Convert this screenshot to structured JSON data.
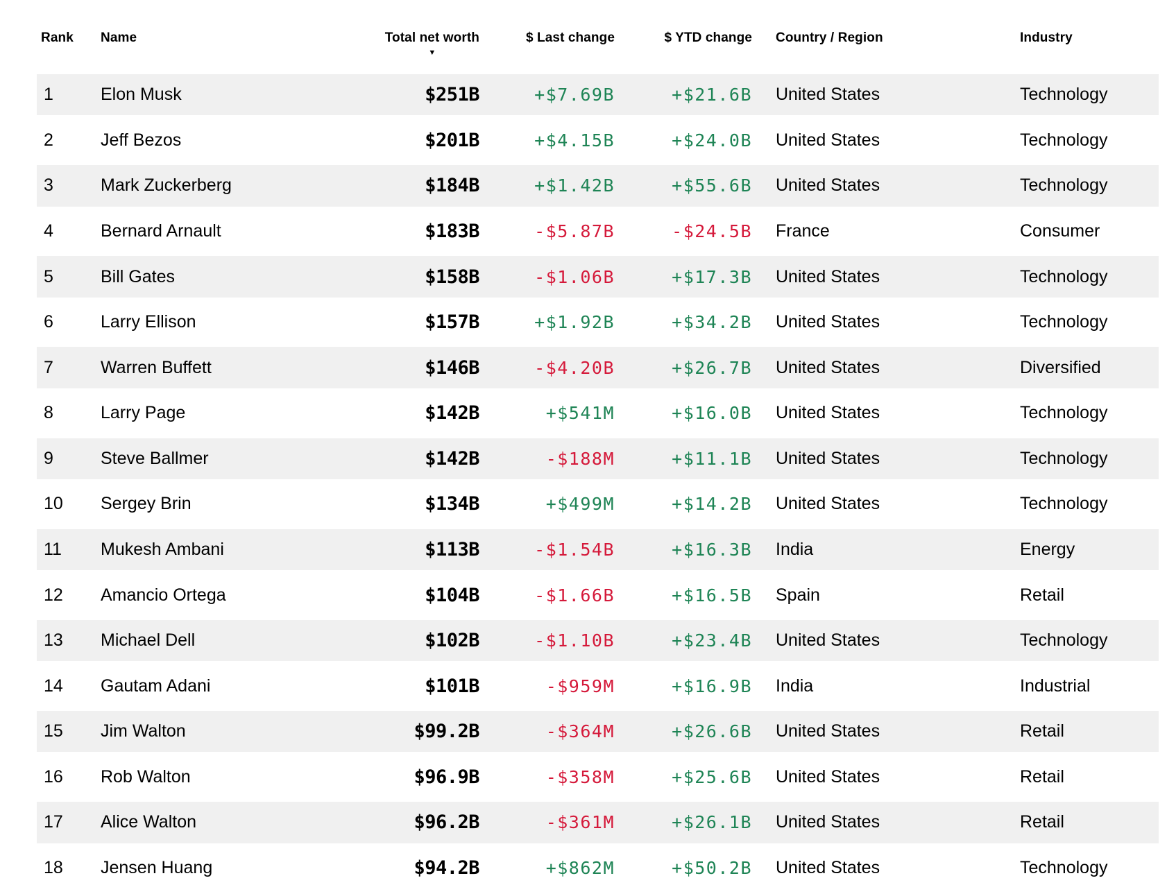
{
  "table": {
    "columns": [
      {
        "key": "rank",
        "label": "Rank"
      },
      {
        "key": "name",
        "label": "Name"
      },
      {
        "key": "net_worth",
        "label": "Total net worth",
        "sorted_desc": true
      },
      {
        "key": "last_change",
        "label": "$ Last change"
      },
      {
        "key": "ytd_change",
        "label": "$ YTD change"
      },
      {
        "key": "country",
        "label": "Country / Region"
      },
      {
        "key": "industry",
        "label": "Industry"
      }
    ],
    "sort_desc_icon": "▼",
    "rows": [
      {
        "rank": "1",
        "name": "Elon Musk",
        "net_worth": "$251B",
        "last_change": "+$7.69B",
        "ytd_change": "+$21.6B",
        "country": "United States",
        "industry": "Technology"
      },
      {
        "rank": "2",
        "name": "Jeff Bezos",
        "net_worth": "$201B",
        "last_change": "+$4.15B",
        "ytd_change": "+$24.0B",
        "country": "United States",
        "industry": "Technology"
      },
      {
        "rank": "3",
        "name": "Mark Zuckerberg",
        "net_worth": "$184B",
        "last_change": "+$1.42B",
        "ytd_change": "+$55.6B",
        "country": "United States",
        "industry": "Technology"
      },
      {
        "rank": "4",
        "name": "Bernard Arnault",
        "net_worth": "$183B",
        "last_change": "-$5.87B",
        "ytd_change": "-$24.5B",
        "country": "France",
        "industry": "Consumer"
      },
      {
        "rank": "5",
        "name": "Bill Gates",
        "net_worth": "$158B",
        "last_change": "-$1.06B",
        "ytd_change": "+$17.3B",
        "country": "United States",
        "industry": "Technology"
      },
      {
        "rank": "6",
        "name": "Larry Ellison",
        "net_worth": "$157B",
        "last_change": "+$1.92B",
        "ytd_change": "+$34.2B",
        "country": "United States",
        "industry": "Technology"
      },
      {
        "rank": "7",
        "name": "Warren Buffett",
        "net_worth": "$146B",
        "last_change": "-$4.20B",
        "ytd_change": "+$26.7B",
        "country": "United States",
        "industry": "Diversified"
      },
      {
        "rank": "8",
        "name": "Larry Page",
        "net_worth": "$142B",
        "last_change": "+$541M",
        "ytd_change": "+$16.0B",
        "country": "United States",
        "industry": "Technology"
      },
      {
        "rank": "9",
        "name": "Steve Ballmer",
        "net_worth": "$142B",
        "last_change": "-$188M",
        "ytd_change": "+$11.1B",
        "country": "United States",
        "industry": "Technology"
      },
      {
        "rank": "10",
        "name": "Sergey Brin",
        "net_worth": "$134B",
        "last_change": "+$499M",
        "ytd_change": "+$14.2B",
        "country": "United States",
        "industry": "Technology"
      },
      {
        "rank": "11",
        "name": "Mukesh Ambani",
        "net_worth": "$113B",
        "last_change": "-$1.54B",
        "ytd_change": "+$16.3B",
        "country": "India",
        "industry": "Energy"
      },
      {
        "rank": "12",
        "name": "Amancio Ortega",
        "net_worth": "$104B",
        "last_change": "-$1.66B",
        "ytd_change": "+$16.5B",
        "country": "Spain",
        "industry": "Retail"
      },
      {
        "rank": "13",
        "name": "Michael Dell",
        "net_worth": "$102B",
        "last_change": "-$1.10B",
        "ytd_change": "+$23.4B",
        "country": "United States",
        "industry": "Technology"
      },
      {
        "rank": "14",
        "name": "Gautam Adani",
        "net_worth": "$101B",
        "last_change": "-$959M",
        "ytd_change": "+$16.9B",
        "country": "India",
        "industry": "Industrial"
      },
      {
        "rank": "15",
        "name": "Jim Walton",
        "net_worth": "$99.2B",
        "last_change": "-$364M",
        "ytd_change": "+$26.6B",
        "country": "United States",
        "industry": "Retail"
      },
      {
        "rank": "16",
        "name": "Rob Walton",
        "net_worth": "$96.9B",
        "last_change": "-$358M",
        "ytd_change": "+$25.6B",
        "country": "United States",
        "industry": "Retail"
      },
      {
        "rank": "17",
        "name": "Alice Walton",
        "net_worth": "$96.2B",
        "last_change": "-$361M",
        "ytd_change": "+$26.1B",
        "country": "United States",
        "industry": "Retail"
      },
      {
        "rank": "18",
        "name": "Jensen Huang",
        "net_worth": "$94.2B",
        "last_change": "+$862M",
        "ytd_change": "+$50.2B",
        "country": "United States",
        "industry": "Technology"
      }
    ]
  },
  "colors": {
    "positive": "#1e8455",
    "negative": "#d5193a",
    "row_stripe": "#f0f0f0",
    "text": "#000000"
  }
}
